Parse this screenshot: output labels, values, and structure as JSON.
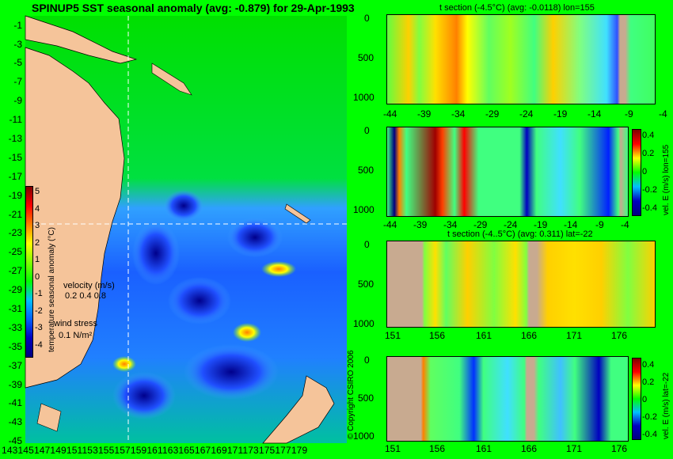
{
  "map": {
    "title": "SPINUP5 SST seasonal anomaly (avg: -0.879) for 29-Apr-1993",
    "lat_ticks": [
      "-1",
      "-3",
      "-5",
      "-7",
      "-9",
      "-11",
      "-13",
      "-15",
      "-17",
      "-19",
      "-21",
      "-23",
      "-25",
      "-27",
      "-29",
      "-31",
      "-33",
      "-35",
      "-37",
      "-39",
      "-41",
      "-43",
      "-45"
    ],
    "lon_ticks": "143145147149151153155157159161163165167169171173175177179",
    "colorbar_label": "temperature seasonal anomaly (°C)",
    "colorbar_ticks": [
      "5",
      "4",
      "3",
      "2",
      "1",
      "0",
      "-1",
      "-2",
      "-3",
      "-4"
    ],
    "velocity_label": "velocity (m/s)",
    "velocity_scale": "0.2 0.4 0.8",
    "wind_label": "wind stress",
    "wind_scale": "0.1 N/m²",
    "copyright": "© Copyright CSIRO 2006"
  },
  "panels": [
    {
      "title": "t section (-4.5°C) (avg: -0.0118) lon=155",
      "y_ticks": [
        "0",
        "500",
        "1000"
      ],
      "x_ticks": [
        "-44",
        "-39",
        "-34",
        "-29",
        "-24",
        "-19",
        "-14",
        "-9",
        "-4"
      ],
      "side_label": ""
    },
    {
      "title": "",
      "y_ticks": [
        "0",
        "500",
        "1000"
      ],
      "x_ticks": [
        "-44",
        "-39",
        "-34",
        "-29",
        "-24",
        "-19",
        "-14",
        "-9",
        "-4"
      ],
      "side_label": "vel. E (m/s) lon=155",
      "cbar_ticks": [
        "0.4",
        "0.2",
        "0",
        "-0.2",
        "-0.4"
      ]
    },
    {
      "title": "t section (-4..5°C) (avg: 0.311) lat=-22",
      "y_ticks": [
        "0",
        "500",
        "1000"
      ],
      "x_ticks": [
        "151",
        "156",
        "161",
        "166",
        "171",
        "176"
      ],
      "side_label": ""
    },
    {
      "title": "",
      "y_ticks": [
        "0",
        "500",
        "1000"
      ],
      "x_ticks": [
        "151",
        "156",
        "161",
        "166",
        "171",
        "176"
      ],
      "side_label": "vel. E (m/s) lat=-22",
      "cbar_ticks": [
        "0.4",
        "0.2",
        "0",
        "-0.2",
        "-0.4"
      ]
    }
  ],
  "colors": {
    "ocean_base": "#00e000",
    "land": "#f5c49a",
    "section_land": "#c8aa90",
    "anomaly_cold": "#0020c0",
    "anomaly_warm": "#ffd000"
  }
}
